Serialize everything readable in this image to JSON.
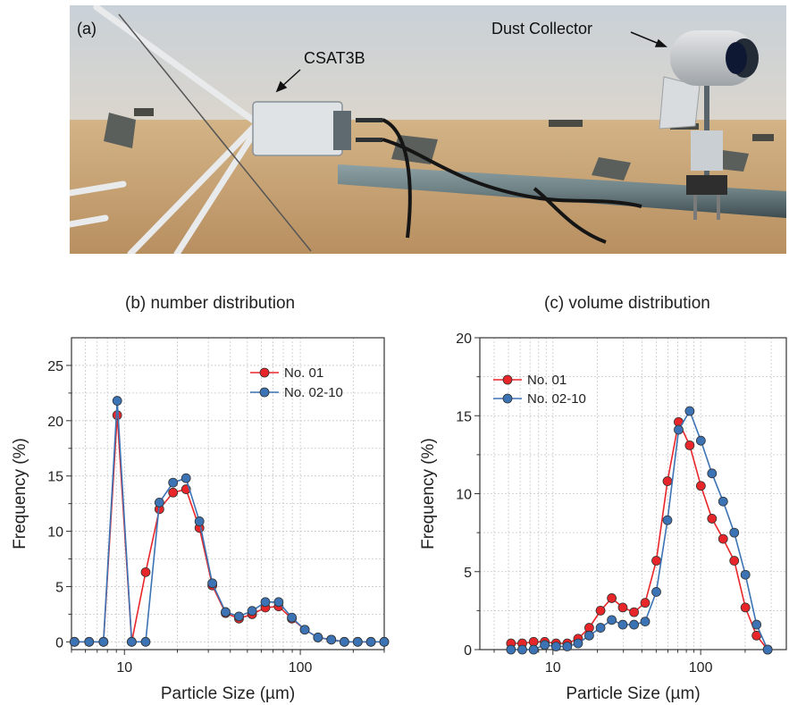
{
  "photo": {
    "panel_label": "(a)",
    "annotations": [
      "CSAT3B",
      "Dust Collector"
    ]
  },
  "colors": {
    "red_series": "#e8262a",
    "blue_series": "#3c73b4",
    "marker_edge": "#333333",
    "sky": "#cfd6dc",
    "sand": "#c9a87a"
  },
  "chart_data": [
    {
      "type": "line",
      "title": "(b) number distribution",
      "xlabel": "Particle Size (µm)",
      "ylabel": "Frequency (%)",
      "xscale": "log",
      "xlim": [
        5,
        300
      ],
      "ylim": [
        -0.7,
        27.5
      ],
      "xticks": [
        10,
        100
      ],
      "xtick_labels": [
        "10",
        "100"
      ],
      "yticks": [
        0,
        5,
        10,
        15,
        20,
        25
      ],
      "ytick_labels": [
        "0",
        "5",
        "10",
        "15",
        "20",
        "25"
      ],
      "grid": true,
      "legend_position": "top-right",
      "x": [
        5.2,
        6.3,
        7.6,
        9.1,
        11.0,
        13.2,
        15.8,
        18.9,
        22.4,
        26.7,
        31.6,
        37.6,
        44.8,
        53.2,
        63.3,
        75.3,
        89.5,
        106,
        126,
        150,
        178,
        212,
        252,
        300
      ],
      "series": [
        {
          "name": "No. 01",
          "color": "red",
          "values": [
            0,
            0,
            0,
            20.5,
            0,
            6.3,
            12.0,
            13.5,
            13.8,
            10.3,
            5.1,
            2.6,
            2.1,
            2.5,
            3.1,
            3.2,
            2.1,
            1.1,
            0.4,
            0.2,
            0,
            0,
            0,
            0
          ]
        },
        {
          "name": "No. 02-10",
          "color": "blue",
          "values": [
            0,
            0,
            0,
            21.8,
            0,
            0,
            12.6,
            14.4,
            14.8,
            10.9,
            5.3,
            2.7,
            2.3,
            2.8,
            3.6,
            3.6,
            2.2,
            1.1,
            0.4,
            0.2,
            0,
            0,
            0,
            0
          ]
        }
      ]
    },
    {
      "type": "line",
      "title": "(c) volume distribution",
      "xlabel": "Particle Size (µm)",
      "ylabel": "Frequency (%)",
      "xscale": "log",
      "xlim": [
        3.2,
        380
      ],
      "ylim": [
        0,
        20
      ],
      "xticks": [
        10,
        100
      ],
      "xtick_labels": [
        "10",
        "100"
      ],
      "yticks": [
        0,
        5,
        10,
        15,
        20
      ],
      "ytick_labels": [
        "0",
        "5",
        "10",
        "15",
        "20"
      ],
      "grid": true,
      "legend_position": "top-left",
      "x": [
        5.2,
        6.2,
        7.4,
        8.8,
        10.5,
        12.5,
        14.8,
        17.6,
        21.0,
        25.0,
        29.7,
        35.4,
        42.1,
        50.1,
        59.6,
        70.9,
        84.3,
        100.3,
        119.3,
        141.9,
        168.8,
        200.8,
        238.9,
        284.2
      ],
      "series": [
        {
          "name": "No. 01",
          "color": "red",
          "values": [
            0.4,
            0.4,
            0.5,
            0.5,
            0.4,
            0.4,
            0.7,
            1.4,
            2.5,
            3.3,
            2.7,
            2.4,
            3.0,
            5.7,
            10.8,
            14.6,
            13.1,
            10.5,
            8.4,
            7.1,
            5.7,
            2.7,
            0.9,
            0
          ]
        },
        {
          "name": "No. 02-10",
          "color": "blue",
          "values": [
            0,
            0,
            0,
            0.3,
            0.2,
            0.2,
            0.4,
            0.9,
            1.4,
            1.9,
            1.6,
            1.6,
            1.8,
            3.7,
            8.3,
            14.1,
            15.3,
            13.4,
            11.3,
            9.5,
            7.5,
            4.8,
            1.6,
            0
          ]
        }
      ]
    }
  ]
}
